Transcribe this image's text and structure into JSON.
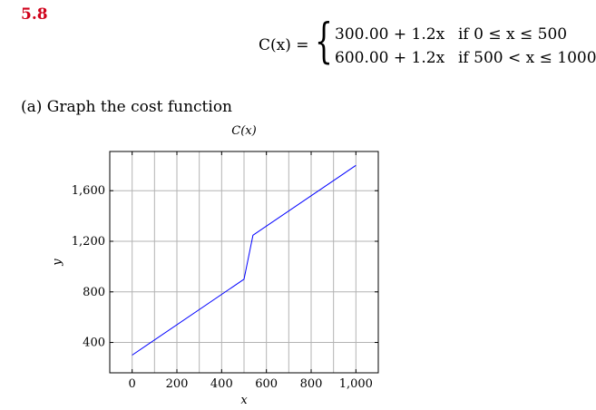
{
  "problem": {
    "number": "5.8",
    "equation_lhs": "C(x) =",
    "cases": [
      {
        "expr": "300.00 + 1.2x",
        "cond": "if 0 ≤ x ≤ 500"
      },
      {
        "expr": "600.00 + 1.2x",
        "cond": "if 500 < x ≤ 1000"
      }
    ],
    "part_a": "(a)  Graph the cost function"
  },
  "chart_data": {
    "type": "line",
    "title": "C(x)",
    "xlabel": "x",
    "ylabel": "y",
    "xlim": [
      -100,
      1100
    ],
    "ylim": [
      160,
      1910
    ],
    "xticks": [
      0,
      200,
      400,
      600,
      800,
      1000
    ],
    "xtick_labels": [
      "0",
      "200",
      "400",
      "600",
      "800",
      "1,000"
    ],
    "yticks": [
      400,
      800,
      1200,
      1600
    ],
    "ytick_labels": [
      "400",
      "800",
      "1,200",
      "1,600"
    ],
    "x_gridlines": [
      0,
      100,
      200,
      300,
      400,
      500,
      600,
      700,
      800,
      900,
      1000
    ],
    "grid": true,
    "line_color": "#0000ff",
    "series": [
      {
        "x": [
          0,
          500,
          540,
          1000
        ],
        "y": [
          300,
          900,
          1248,
          1800
        ]
      }
    ]
  }
}
